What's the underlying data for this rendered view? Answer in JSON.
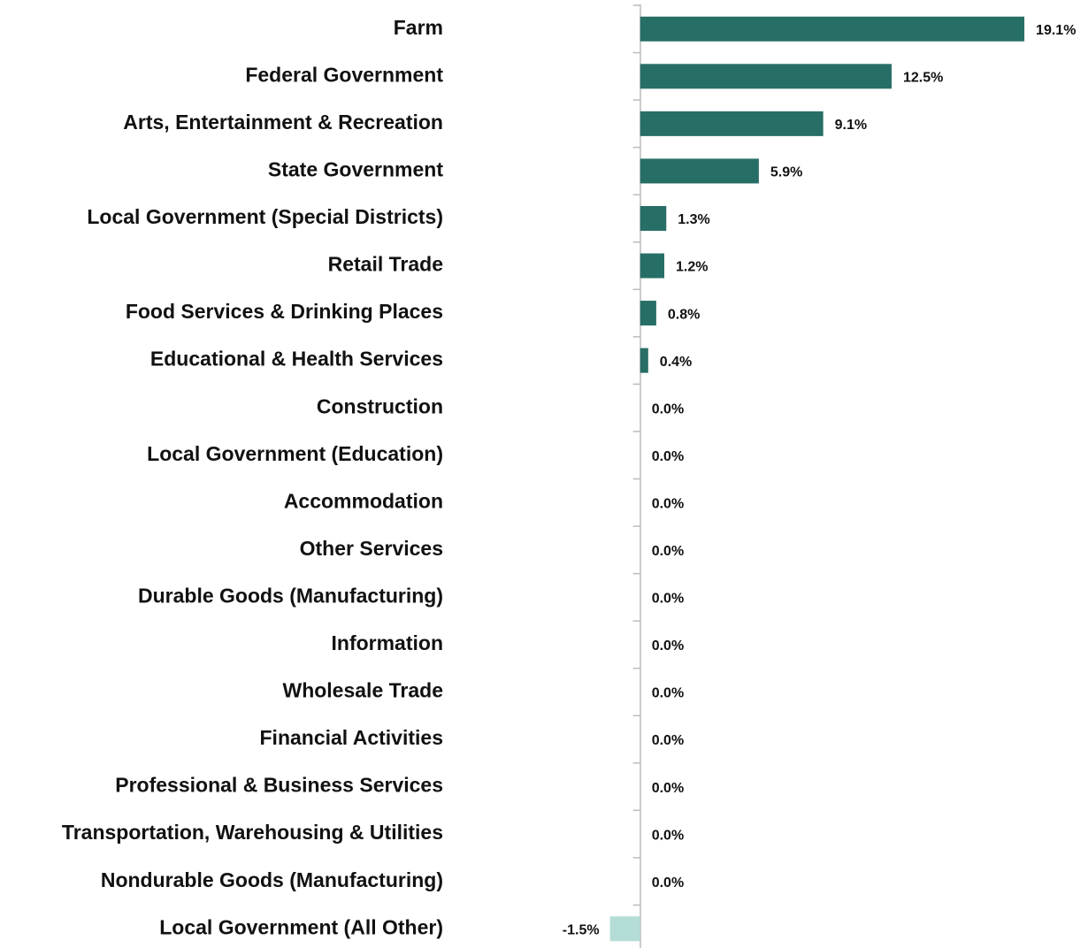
{
  "chart_data": {
    "type": "hbar",
    "categories": [
      "Farm",
      "Federal Government",
      "Arts, Entertainment & Recreation",
      "State Government",
      "Local Government (Special Districts)",
      "Retail Trade",
      "Food Services & Drinking Places",
      "Educational & Health Services",
      "Construction",
      "Local Government (Education)",
      "Accommodation",
      "Other Services",
      "Durable Goods (Manufacturing)",
      "Information",
      "Wholesale Trade",
      "Financial Activities",
      "Professional & Business Services",
      "Transportation, Warehousing & Utilities",
      "Nondurable Goods (Manufacturing)",
      "Local Government (All Other)"
    ],
    "values": [
      19.1,
      12.5,
      9.1,
      5.9,
      1.3,
      1.2,
      0.8,
      0.4,
      0,
      0,
      0,
      0,
      0,
      0,
      0,
      0,
      0,
      0,
      0,
      -1.5
    ],
    "value_labels": [
      "19.1%",
      "12.5%",
      "9.1%",
      "5.9%",
      "1.3%",
      "1.2%",
      "0.8%",
      "0.4%",
      "0.0%",
      "0.0%",
      "0.0%",
      "0.0%",
      "0.0%",
      "0.0%",
      "0.0%",
      "0.0%",
      "0.0%",
      "0.0%",
      "0.0%",
      "-1.5%"
    ],
    "color": "#276e66",
    "negative_color": "#b3ddd6",
    "xlim": [
      -5,
      22
    ]
  }
}
